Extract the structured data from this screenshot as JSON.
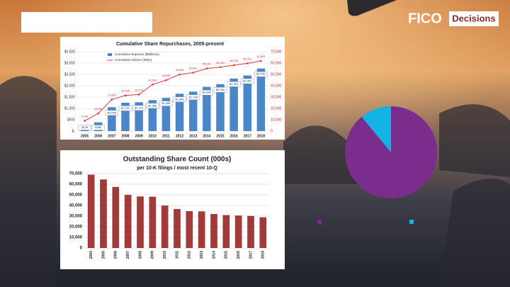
{
  "logo": {
    "brand": "FICO",
    "product": "Decisions"
  },
  "chart_data": [
    {
      "type": "combo",
      "title": "Cumulative Share Repurchases, 2005-present",
      "categories": [
        "2005",
        "2006",
        "2007",
        "2008",
        "2009",
        "2010",
        "2011",
        "2012",
        "2013",
        "2014",
        "2015",
        "2016",
        "2017",
        "2018"
      ],
      "series": [
        {
          "name": "Cumulative Expense ($Millions)",
          "type": "bar",
          "color": "#4a86c8",
          "values": [
            128,
            385,
            1056,
            1252,
            1273,
            1366,
            1465,
            1646,
            1738,
            1949,
            2069,
            2318,
            2451,
            2760
          ],
          "value_labels": [
            "$128",
            "$385",
            "$1,056",
            "$1,252",
            "$1,273",
            "$1,366",
            "$1,465",
            "$1,646",
            "$1,738",
            "$1,949",
            "$2,069",
            "$2,318",
            "$2,451",
            "$2,760"
          ]
        },
        {
          "name": "Cumulative Shares (000s)",
          "type": "line",
          "axis": "y2",
          "color": "#d9363e",
          "values": [
            9116,
            15481,
            27869,
            31436,
            32272,
            41081,
            44935,
            49896,
            51561,
            55241,
            56400,
            58138,
            59761,
            61851
          ],
          "value_labels": [
            "9,116",
            "15,481",
            "27,869",
            "31,436",
            "32,272",
            "41,081",
            "44,935",
            "49,896",
            "51,561",
            "55,241",
            "56,400",
            "58,138",
            "59,761",
            "61,851"
          ]
        }
      ],
      "ylim": [
        0,
        3500
      ],
      "yticks": [
        {
          "value": 0,
          "label": "$-"
        },
        {
          "value": 500,
          "label": "$500"
        },
        {
          "value": 1000,
          "label": "$1,000"
        },
        {
          "value": 1500,
          "label": "$1,500"
        },
        {
          "value": 2000,
          "label": "$2,000"
        },
        {
          "value": 2500,
          "label": "$2,500"
        },
        {
          "value": 3000,
          "label": "$3,000"
        },
        {
          "value": 3500,
          "label": "$3,500"
        }
      ],
      "y2lim": [
        0,
        70000
      ],
      "y2ticks": [
        0,
        {
          "value": 10000,
          "label": "10,000"
        },
        {
          "value": 20000,
          "label": "20,000"
        },
        {
          "value": 30000,
          "label": "30,000"
        },
        {
          "value": 40000,
          "label": "40,000"
        },
        {
          "value": 50000,
          "label": "50,000"
        },
        {
          "value": 60000,
          "label": "60,000"
        },
        {
          "value": 70000,
          "label": "70,000"
        }
      ],
      "grid": true
    },
    {
      "type": "bar",
      "title": "Outstanding Share Count (000s)",
      "subtitle": "per 10-K filings / most recent 10-Q",
      "categories": [
        "2004",
        "2005",
        "2006",
        "2007",
        "2008",
        "2009",
        "2010",
        "2011",
        "2012",
        "2013",
        "2014",
        "2015",
        "2016",
        "2017",
        "2018"
      ],
      "values": [
        69000,
        64500,
        57500,
        50000,
        48500,
        48300,
        40000,
        36700,
        34700,
        34500,
        32000,
        31000,
        30600,
        30200,
        28900
      ],
      "color": "#a33a3a",
      "ylim": [
        0,
        70000
      ],
      "yticks": [
        0,
        {
          "value": 10000,
          "label": "10,000"
        },
        {
          "value": 20000,
          "label": "20,000"
        },
        {
          "value": 30000,
          "label": "30,000"
        },
        {
          "value": 40000,
          "label": "40,000"
        },
        {
          "value": 50000,
          "label": "50,000"
        },
        {
          "value": 60000,
          "label": "60,000"
        },
        {
          "value": 70000,
          "label": "70,000"
        }
      ],
      "grid": true
    },
    {
      "type": "pie",
      "categories": [
        null,
        null
      ],
      "values": [
        89,
        11
      ],
      "colors": [
        "#7a2d8c",
        "#12b4e6"
      ]
    }
  ]
}
